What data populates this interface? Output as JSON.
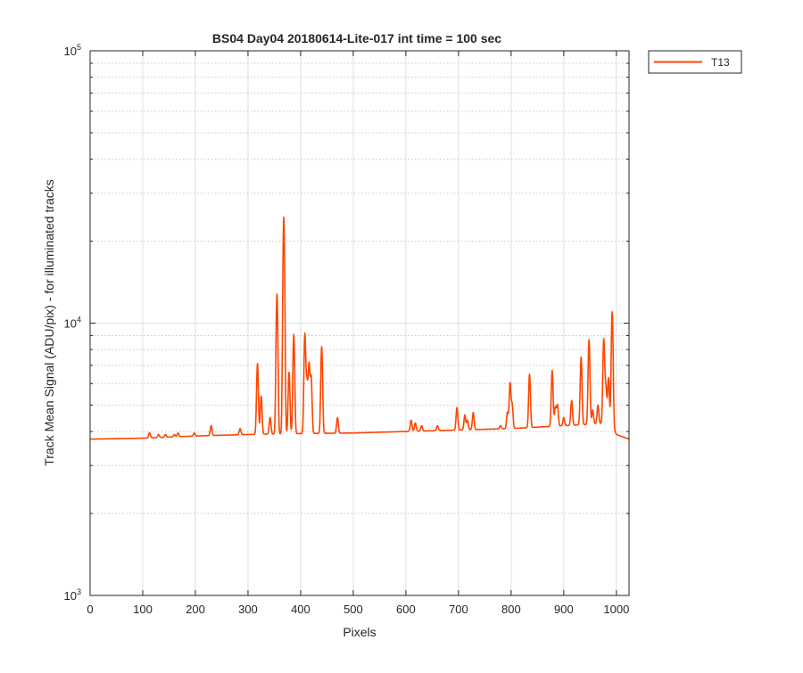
{
  "chart_data": {
    "type": "line",
    "title": "BS04 Day04 20180614-Lite-017 int time = 100 sec",
    "xlabel": "Pixels",
    "ylabel": "Track Mean Signal (ADU/pix) - for illuminated tracks",
    "xlim": [
      0,
      1024
    ],
    "ylim": [
      1000,
      100000
    ],
    "yscale": "log",
    "xticks": [
      "0",
      "100",
      "200",
      "300",
      "400",
      "500",
      "600",
      "700",
      "800",
      "900",
      "1000"
    ],
    "yticks": [
      {
        "base": "10",
        "exp": "3"
      },
      {
        "base": "10",
        "exp": "4"
      },
      {
        "base": "10",
        "exp": "5"
      }
    ],
    "grid": true,
    "legend_position": "outside-top-right",
    "series": [
      {
        "name": "T13",
        "color": "#ff4500",
        "baseline": [
          [
            0,
            3750
          ],
          [
            100,
            3780
          ],
          [
            200,
            3850
          ],
          [
            300,
            3900
          ],
          [
            400,
            3930
          ],
          [
            500,
            3950
          ],
          [
            600,
            4000
          ],
          [
            700,
            4050
          ],
          [
            800,
            4100
          ],
          [
            900,
            4200
          ],
          [
            990,
            4300
          ],
          [
            1000,
            3900
          ],
          [
            1024,
            3750
          ]
        ],
        "peaks": [
          [
            113,
            3960
          ],
          [
            130,
            3900
          ],
          [
            143,
            3900
          ],
          [
            160,
            3900
          ],
          [
            167,
            3950
          ],
          [
            198,
            3950
          ],
          [
            230,
            4200
          ],
          [
            285,
            4100
          ],
          [
            318,
            7100
          ],
          [
            325,
            5400
          ],
          [
            342,
            4500
          ],
          [
            355,
            12800
          ],
          [
            368,
            24500
          ],
          [
            378,
            6600
          ],
          [
            387,
            9100
          ],
          [
            408,
            9100
          ],
          [
            412,
            6000
          ],
          [
            416,
            7000
          ],
          [
            420,
            6300
          ],
          [
            440,
            8200
          ],
          [
            470,
            4500
          ],
          [
            610,
            4400
          ],
          [
            618,
            4300
          ],
          [
            630,
            4200
          ],
          [
            660,
            4200
          ],
          [
            697,
            4900
          ],
          [
            712,
            4600
          ],
          [
            717,
            4400
          ],
          [
            728,
            4700
          ],
          [
            780,
            4200
          ],
          [
            793,
            4700
          ],
          [
            798,
            6000
          ],
          [
            802,
            5000
          ],
          [
            835,
            6500
          ],
          [
            878,
            6700
          ],
          [
            884,
            4900
          ],
          [
            888,
            5000
          ],
          [
            900,
            4500
          ],
          [
            915,
            5200
          ],
          [
            933,
            7500
          ],
          [
            948,
            8700
          ],
          [
            955,
            4800
          ],
          [
            965,
            5000
          ],
          [
            976,
            8700
          ],
          [
            980,
            5800
          ],
          [
            985,
            6300
          ],
          [
            992,
            11000
          ]
        ]
      }
    ]
  }
}
